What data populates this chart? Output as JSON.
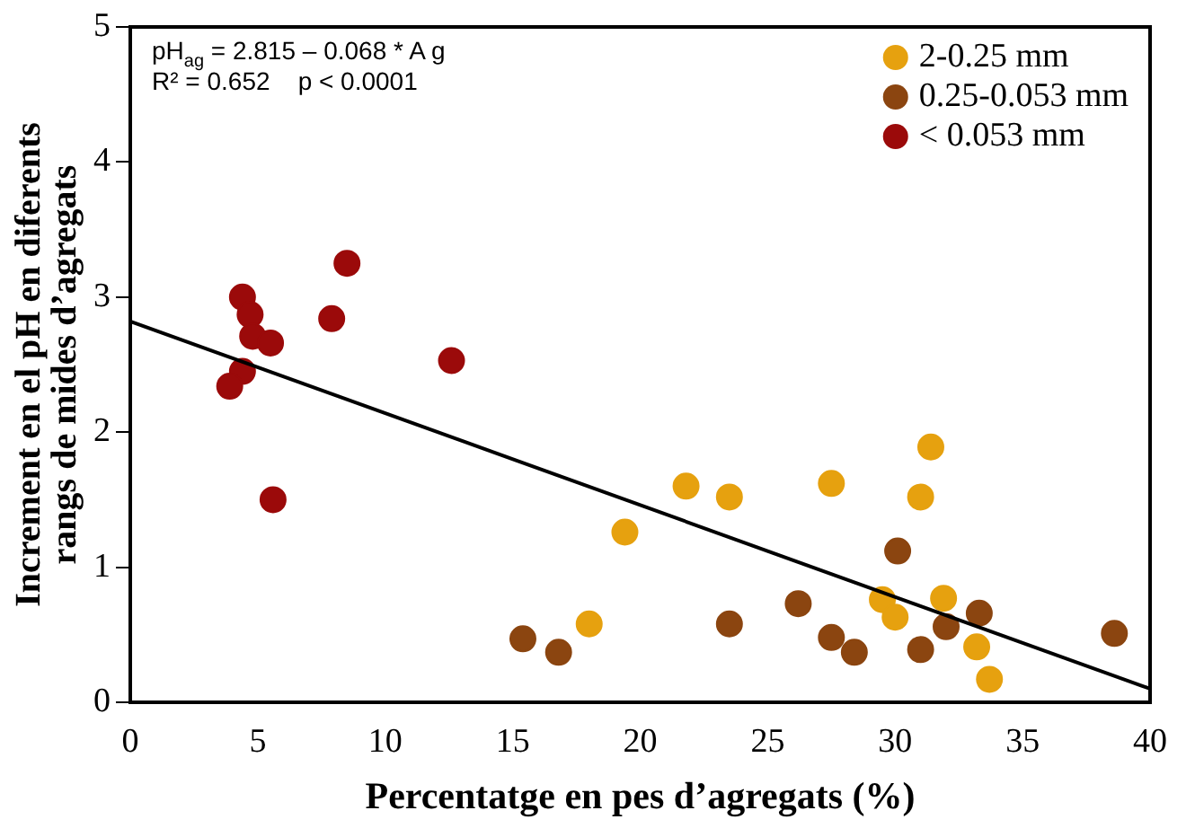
{
  "chart_data": {
    "type": "scatter",
    "xlabel": "Percentatge en pes d’agregats (%)",
    "ylabel": "Increment en el pH en diferents\nrangs de mides d’agregats",
    "xlim": [
      0,
      40
    ],
    "xticks": [
      0,
      5,
      10,
      15,
      20,
      25,
      30,
      35,
      40
    ],
    "ylim": [
      0,
      5
    ],
    "yticks": [
      0,
      1,
      2,
      3,
      4,
      5
    ],
    "grid": false,
    "legend": "top right",
    "marker": "circle",
    "annotations": [
      "pH$_{ag}$ = 2.815 – 0.068 * A g",
      "R² = 0.652    p < 0.0001"
    ],
    "series": [
      {
        "name": "2-0.25 mm",
        "color": "#e6a10f",
        "x": [
          18.0,
          19.4,
          21.8,
          23.5,
          27.5,
          29.5,
          30.0,
          31.0,
          31.4,
          31.9,
          33.2,
          33.7
        ],
        "values": [
          0.58,
          1.26,
          1.6,
          1.52,
          1.62,
          0.76,
          0.63,
          1.52,
          1.89,
          0.77,
          0.41,
          0.17
        ]
      },
      {
        "name": "0.25-0.053 mm",
        "color": "#8b4510",
        "x": [
          15.4,
          16.8,
          23.5,
          26.2,
          27.5,
          28.4,
          30.1,
          31.0,
          32.0,
          33.3,
          38.6
        ],
        "values": [
          0.47,
          0.37,
          0.58,
          0.73,
          0.48,
          0.37,
          1.12,
          0.39,
          0.56,
          0.66,
          0.51
        ]
      },
      {
        "name": "< 0.053 mm",
        "color": "#9b0a0a",
        "x": [
          4.4,
          4.7,
          4.8,
          5.5,
          4.4,
          3.9,
          5.6,
          7.9,
          8.5,
          12.6
        ],
        "values": [
          3.0,
          2.87,
          2.71,
          2.66,
          2.45,
          2.34,
          1.5,
          2.84,
          3.25,
          2.53
        ]
      },
      {
        "type": "line",
        "marker": "none",
        "color": "#000000",
        "x": [
          0,
          40
        ],
        "values": [
          2.82,
          0.1
        ]
      }
    ]
  }
}
